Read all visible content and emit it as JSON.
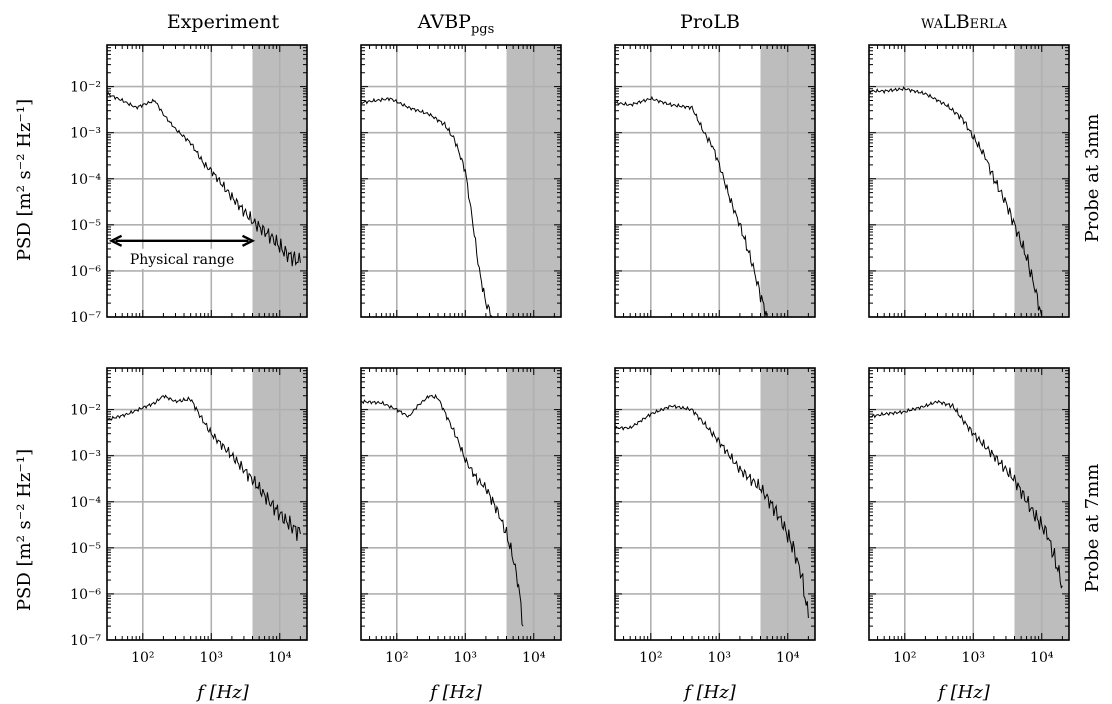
{
  "figure": {
    "ylabel": "PSD [m² s⁻² Hz⁻¹]",
    "xlabel": "f [Hz]",
    "columns": [
      {
        "base": "Experiment",
        "sub": ""
      },
      {
        "base": "AVBP",
        "sub": "pgs"
      },
      {
        "base": "ProLB",
        "sub": ""
      },
      {
        "base": "waLBerla",
        "sub": ""
      }
    ],
    "rows": [
      "Probe at 3mm",
      "Probe at 7mm"
    ],
    "annotation": "Physical range",
    "ytick_labels": [
      "10⁻⁷",
      "10⁻⁶",
      "10⁻⁵",
      "10⁻⁴",
      "10⁻³",
      "10⁻²"
    ],
    "xtick_labels": [
      "10²",
      "10³",
      "10⁴"
    ]
  },
  "chart_data": [
    {
      "type": "line",
      "row": "Probe at 3mm",
      "column": "Experiment",
      "x_scale": "log",
      "y_scale": "log",
      "xlim": [
        30,
        25000
      ],
      "ylim": [
        1e-07,
        0.08
      ],
      "grid": true,
      "shaded_x": [
        4000,
        25000
      ],
      "annotation": {
        "text": "Physical range",
        "x_from": 35,
        "x_to": 4000,
        "y": 4.5e-06
      },
      "x": [
        30,
        50,
        80,
        100,
        150,
        200,
        300,
        500,
        800,
        1000,
        2000,
        4000,
        8000,
        12000,
        20000
      ],
      "y": [
        0.007,
        0.005,
        0.0035,
        0.004,
        0.005,
        0.0025,
        0.0012,
        0.0006,
        0.0002,
        0.00015,
        4e-05,
        1.2e-05,
        5e-06,
        2.5e-06,
        1.5e-06
      ]
    },
    {
      "type": "line",
      "row": "Probe at 3mm",
      "column": "AVBP",
      "x_scale": "log",
      "y_scale": "log",
      "xlim": [
        30,
        25000
      ],
      "ylim": [
        1e-07,
        0.08
      ],
      "grid": true,
      "shaded_x": [
        4000,
        25000
      ],
      "x": [
        30,
        50,
        80,
        150,
        300,
        500,
        700,
        1000,
        1300,
        1600,
        2000,
        2500
      ],
      "y": [
        0.0045,
        0.005,
        0.0055,
        0.0035,
        0.0025,
        0.0015,
        0.0007,
        0.00015,
        1e-05,
        1e-06,
        2e-07,
        1e-07
      ]
    },
    {
      "type": "line",
      "row": "Probe at 3mm",
      "column": "ProLB",
      "x_scale": "log",
      "y_scale": "log",
      "xlim": [
        30,
        25000
      ],
      "ylim": [
        1e-07,
        0.08
      ],
      "grid": true,
      "shaded_x": [
        4000,
        25000
      ],
      "x": [
        30,
        50,
        100,
        200,
        400,
        600,
        800,
        1000,
        1500,
        2000,
        3000,
        4000,
        5000
      ],
      "y": [
        0.0045,
        0.004,
        0.0055,
        0.004,
        0.0035,
        0.001,
        0.0005,
        0.0002,
        3e-05,
        1e-05,
        1.5e-06,
        3e-07,
        1e-07
      ]
    },
    {
      "type": "line",
      "row": "Probe at 3mm",
      "column": "waLBerla",
      "x_scale": "log",
      "y_scale": "log",
      "xlim": [
        30,
        25000
      ],
      "ylim": [
        1e-07,
        0.08
      ],
      "grid": true,
      "shaded_x": [
        4000,
        25000
      ],
      "x": [
        30,
        50,
        100,
        200,
        400,
        700,
        1000,
        1500,
        2000,
        3000,
        4000,
        6000,
        8000,
        10000
      ],
      "y": [
        0.008,
        0.008,
        0.009,
        0.007,
        0.004,
        0.002,
        0.0008,
        0.0003,
        0.0001,
        3e-05,
        1e-05,
        2e-06,
        4e-07,
        1e-07
      ]
    },
    {
      "type": "line",
      "row": "Probe at 7mm",
      "column": "Experiment",
      "x_scale": "log",
      "y_scale": "log",
      "xlim": [
        30,
        25000
      ],
      "ylim": [
        1e-07,
        0.08
      ],
      "grid": true,
      "shaded_x": [
        4000,
        25000
      ],
      "x": [
        30,
        60,
        100,
        150,
        200,
        300,
        500,
        700,
        1000,
        2000,
        4000,
        8000,
        12000,
        20000
      ],
      "y": [
        0.006,
        0.008,
        0.011,
        0.014,
        0.02,
        0.015,
        0.017,
        0.007,
        0.003,
        0.001,
        0.0003,
        8e-05,
        4e-05,
        2e-05
      ]
    },
    {
      "type": "line",
      "row": "Probe at 7mm",
      "column": "AVBP",
      "x_scale": "log",
      "y_scale": "log",
      "xlim": [
        30,
        25000
      ],
      "ylim": [
        1e-07,
        0.08
      ],
      "grid": true,
      "shaded_x": [
        4000,
        25000
      ],
      "x": [
        30,
        60,
        100,
        150,
        200,
        300,
        400,
        600,
        800,
        1000,
        1500,
        2000,
        3000,
        4000,
        5000,
        6000,
        7000
      ],
      "y": [
        0.015,
        0.014,
        0.01,
        0.007,
        0.012,
        0.02,
        0.018,
        0.005,
        0.002,
        0.0008,
        0.0003,
        0.0002,
        6e-05,
        2e-05,
        6e-06,
        1.5e-06,
        2e-07
      ]
    },
    {
      "type": "line",
      "row": "Probe at 7mm",
      "column": "ProLB",
      "x_scale": "log",
      "y_scale": "log",
      "xlim": [
        30,
        25000
      ],
      "ylim": [
        1e-07,
        0.08
      ],
      "grid": true,
      "shaded_x": [
        4000,
        25000
      ],
      "x": [
        30,
        50,
        100,
        200,
        400,
        600,
        1000,
        2000,
        4000,
        6000,
        8000,
        12000,
        16000,
        20000
      ],
      "y": [
        0.004,
        0.004,
        0.008,
        0.012,
        0.01,
        0.005,
        0.002,
        0.0005,
        0.0002,
        8e-05,
        4e-05,
        1e-05,
        2.5e-06,
        3e-07
      ]
    },
    {
      "type": "line",
      "row": "Probe at 7mm",
      "column": "waLBerla",
      "x_scale": "log",
      "y_scale": "log",
      "xlim": [
        30,
        25000
      ],
      "ylim": [
        1e-07,
        0.08
      ],
      "grid": true,
      "shaded_x": [
        4000,
        25000
      ],
      "x": [
        30,
        50,
        100,
        200,
        300,
        500,
        700,
        1000,
        2000,
        4000,
        8000,
        12000,
        16000,
        20000
      ],
      "y": [
        0.007,
        0.008,
        0.009,
        0.012,
        0.015,
        0.012,
        0.006,
        0.003,
        0.001,
        0.0003,
        5e-05,
        2e-05,
        5e-06,
        1.5e-06
      ]
    }
  ]
}
